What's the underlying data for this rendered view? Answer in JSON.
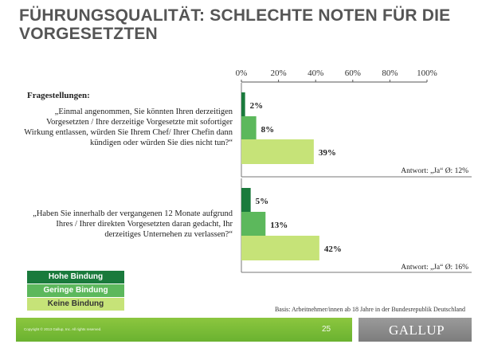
{
  "title": "FÜHRUNGSQUALITÄT: SCHLECHTE NOTEN FÜR DIE VORGESETZTEN",
  "questions_header": "Fragestellungen:",
  "chart_data": {
    "type": "bar",
    "orientation": "horizontal",
    "xlim": [
      0,
      100
    ],
    "xticks": [
      "0%",
      "20%",
      "40%",
      "60%",
      "80%",
      "100%"
    ],
    "groups": [
      {
        "question": "„Einmal angenommen, Sie könnten Ihren derzeitigen Vorgesetzten / Ihre derzeitige Vorgesetzte mit sofortiger Wirkung entlassen, würden Sie Ihrem Chef/ Ihrer Chefin dann kündigen oder würden Sie dies nicht tun?“",
        "values": [
          2,
          8,
          39
        ],
        "labels": [
          "2%",
          "8%",
          "39%"
        ],
        "answer_note": "Antwort: „Ja“ Ø: 12%"
      },
      {
        "question": "„Haben Sie innerhalb der vergangenen 12 Monate aufgrund Ihres / Ihrer direkten Vorgesetzten daran gedacht, Ihr derzeitiges Unternehen zu verlassen?“",
        "values": [
          5,
          13,
          42
        ],
        "labels": [
          "5%",
          "13%",
          "42%"
        ],
        "answer_note": "Antwort: „Ja“ Ø: 16%"
      }
    ],
    "series": [
      {
        "name": "Hohe Bindung",
        "color": "#1a7a3c"
      },
      {
        "name": "Geringe Bindung",
        "color": "#5cb85c"
      },
      {
        "name": "Keine Bindung",
        "color": "#c6e378"
      }
    ],
    "legend_position": "bottom-left"
  },
  "basis": "Basis: Arbeitnehmer/innen ab 18 Jahre in der Bundesrepublik Deutschland",
  "footer": {
    "copyright": "Copyright © 2013 Gallup, Inc. All rights reserved.",
    "page_number": "25",
    "logo": "GALLUP"
  }
}
